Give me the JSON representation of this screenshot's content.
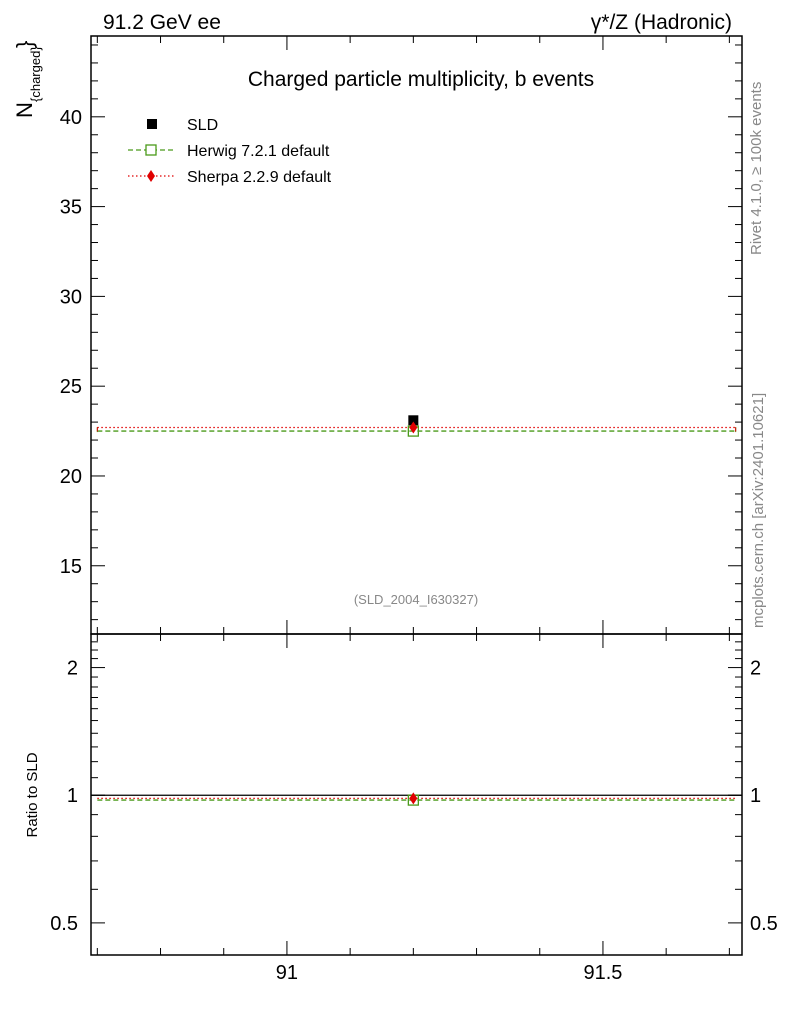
{
  "header": {
    "energy_label": "91.2 GeV ee",
    "process_label": "γ*/Z (Hadronic)"
  },
  "side_labels": {
    "rivet": "Rivet 4.1.0, ≥ 100k events",
    "mcplots": "mcplots.cern.ch [arXiv:2401.10621]"
  },
  "chart_data": [
    {
      "type": "scatter",
      "title": "Charged particle multiplicity, b events",
      "analysis_id": "(SLD_2004_I630327)",
      "ylabel_main": "N",
      "ylabel_sub": "{charged}",
      "ylabel_brace": "}",
      "xlim": [
        90.69,
        91.72
      ],
      "ylim": [
        11.2,
        44.5
      ],
      "x_ticks": [
        "91",
        "91.5"
      ],
      "y_ticks": [
        "15",
        "20",
        "25",
        "30",
        "35",
        "40"
      ],
      "legend": [
        {
          "name": "SLD",
          "color": "#000000",
          "marker": "square-filled"
        },
        {
          "name": "Herwig 7.2.1 default",
          "color": "#4a9a1a",
          "marker": "square-open",
          "line": "dashed"
        },
        {
          "name": "Sherpa 2.2.9 default",
          "color": "#e00000",
          "marker": "diamond",
          "line": "dotted"
        }
      ],
      "series": [
        {
          "name": "SLD",
          "x": 91.2,
          "y": 23.1
        },
        {
          "name": "Herwig 7.2.1 default",
          "x_range": [
            90.7,
            91.71
          ],
          "x": 91.2,
          "y": 22.5
        },
        {
          "name": "Sherpa 2.2.9 default",
          "x_range": [
            90.7,
            91.71
          ],
          "x": 91.2,
          "y": 22.7
        }
      ]
    },
    {
      "type": "scatter",
      "ylabel": "Ratio to SLD",
      "scale": "log",
      "xlim": [
        90.69,
        91.72
      ],
      "ylim": [
        0.42,
        2.4
      ],
      "y_ticks": [
        "0.5",
        "1",
        "2"
      ],
      "y_ticks_right": [
        "0.5",
        "1",
        "2"
      ],
      "series": [
        {
          "name": "SLD",
          "x_range": [
            90.69,
            91.72
          ],
          "y": 1.0
        },
        {
          "name": "Herwig 7.2.1 default",
          "x_range": [
            90.7,
            91.71
          ],
          "x": 91.2,
          "y": 0.974
        },
        {
          "name": "Sherpa 2.2.9 default",
          "x_range": [
            90.7,
            91.71
          ],
          "x": 91.2,
          "y": 0.983
        }
      ]
    }
  ]
}
